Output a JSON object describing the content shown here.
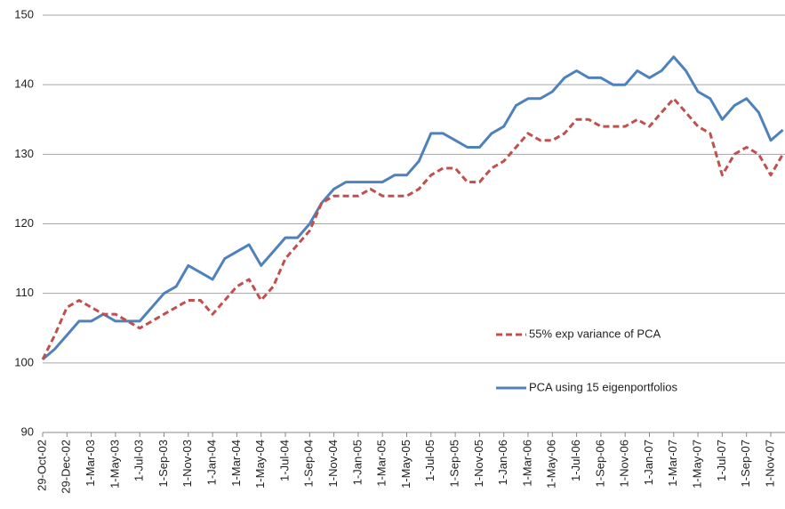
{
  "chart_data": {
    "type": "line",
    "categories": [
      "29-Oct-02",
      null,
      "29-Dec-02",
      null,
      "1-Mar-03",
      null,
      "1-May-03",
      null,
      "1-Jul-03",
      null,
      "1-Sep-03",
      null,
      "1-Nov-03",
      null,
      "1-Jan-04",
      null,
      "1-Mar-04",
      null,
      "1-May-04",
      null,
      "1-Jul-04",
      null,
      "1-Sep-04",
      null,
      "1-Nov-04",
      null,
      "1-Jan-05",
      null,
      "1-Mar-05",
      null,
      "1-May-05",
      null,
      "1-Jul-05",
      null,
      "1-Sep-05",
      null,
      "1-Nov-05",
      null,
      "1-Jan-06",
      null,
      "1-Mar-06",
      null,
      "1-May-06",
      null,
      "1-Jul-06",
      null,
      "1-Sep-06",
      null,
      "1-Nov-06",
      null,
      "1-Jan-07",
      null,
      "1-Mar-07",
      null,
      "1-May-07",
      null,
      "1-Jul-07",
      null,
      "1-Sep-07",
      null,
      "1-Nov-07",
      null
    ],
    "series": [
      {
        "name": "55% exp variance of PCA",
        "color": "#c0504d",
        "style": "dashed",
        "values": [
          100.5,
          104,
          108,
          109,
          108,
          107,
          107,
          106,
          105,
          106,
          107,
          108,
          109,
          109,
          107,
          109,
          111,
          112,
          109,
          111,
          115,
          117,
          119,
          123,
          124,
          124,
          124,
          125,
          124,
          124,
          124,
          125,
          127,
          128,
          128,
          126,
          126,
          128,
          129,
          131,
          133,
          132,
          132,
          133,
          135,
          135,
          134,
          134,
          134,
          135,
          134,
          136,
          138,
          136,
          134,
          133,
          127,
          130,
          131,
          130,
          127,
          130
        ]
      },
      {
        "name": "PCA using 15 eigenportfolios",
        "color": "#4f81bd",
        "style": "solid",
        "values": [
          100.5,
          102,
          104,
          106,
          106,
          107,
          106,
          106,
          106,
          108,
          110,
          111,
          114,
          113,
          112,
          115,
          116,
          117,
          114,
          116,
          118,
          118,
          120,
          123,
          125,
          126,
          126,
          126,
          126,
          127,
          127,
          129,
          133,
          133,
          132,
          131,
          131,
          133,
          134,
          137,
          138,
          138,
          139,
          141,
          142,
          141,
          141,
          140,
          140,
          142,
          141,
          142,
          144,
          142,
          139,
          138,
          135,
          137,
          138,
          136,
          132,
          133.5
        ]
      }
    ],
    "ylim": [
      90,
      150
    ],
    "yticks": [
      90,
      100,
      110,
      120,
      130,
      140,
      150
    ],
    "grid": true,
    "legend": "right"
  }
}
